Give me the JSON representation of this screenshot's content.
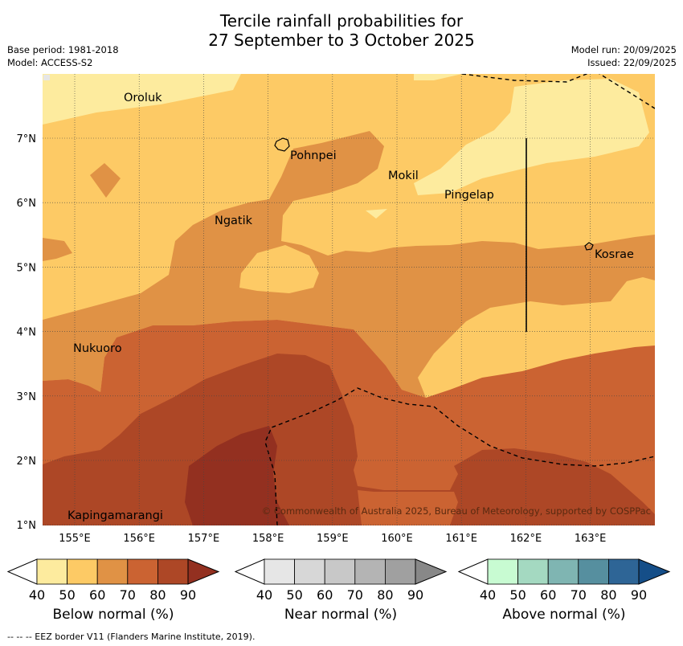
{
  "title": {
    "line1": "Tercile rainfall probabilities for",
    "line2": "27 September to 3 October 2025"
  },
  "meta": {
    "base_period": "Base period: 1981-2018",
    "model": "Model: ACCESS-S2",
    "model_run": "Model run: 20/09/2025",
    "issued": "Issued: 22/09/2025"
  },
  "map": {
    "lon_ticks": [
      "155°E",
      "156°E",
      "157°E",
      "158°E",
      "159°E",
      "160°E",
      "161°E",
      "162°E",
      "163°E"
    ],
    "lat_ticks": [
      "7°N",
      "6°N",
      "5°N",
      "4°N",
      "3°N",
      "2°N",
      "1°N"
    ],
    "places": [
      {
        "name": "Oroluk"
      },
      {
        "name": "Pohnpei"
      },
      {
        "name": "Mokil"
      },
      {
        "name": "Pingelap"
      },
      {
        "name": "Ngatik"
      },
      {
        "name": "Kosrae"
      },
      {
        "name": "Nukuoro"
      },
      {
        "name": "Kapingamarangi"
      }
    ],
    "copyright": "© Commonwealth of Australia 2025, Bureau of Meteorology, supported by COSPPac"
  },
  "legends": [
    {
      "title": "Below normal (%)",
      "ticks": [
        "40",
        "50",
        "60",
        "70",
        "80",
        "90"
      ],
      "colors": [
        "#fdeb9e",
        "#fdca65",
        "#e09245",
        "#cb6332",
        "#ad4726",
        "#933020"
      ]
    },
    {
      "title": "Near normal (%)",
      "ticks": [
        "40",
        "50",
        "60",
        "70",
        "80",
        "90"
      ],
      "colors": [
        "#e6e6e6",
        "#d7d7d7",
        "#c8c8c8",
        "#b4b4b4",
        "#a0a0a0",
        "#888888"
      ]
    },
    {
      "title": "Above normal (%)",
      "ticks": [
        "40",
        "50",
        "60",
        "70",
        "80",
        "90"
      ],
      "colors": [
        "#c8fbd2",
        "#a4d9c1",
        "#7fb5b2",
        "#568f9f",
        "#2e6596",
        "#154e88"
      ]
    }
  ],
  "footer": "--  --  -- EEZ border V11 (Flanders Marine Institute, 2019)."
}
